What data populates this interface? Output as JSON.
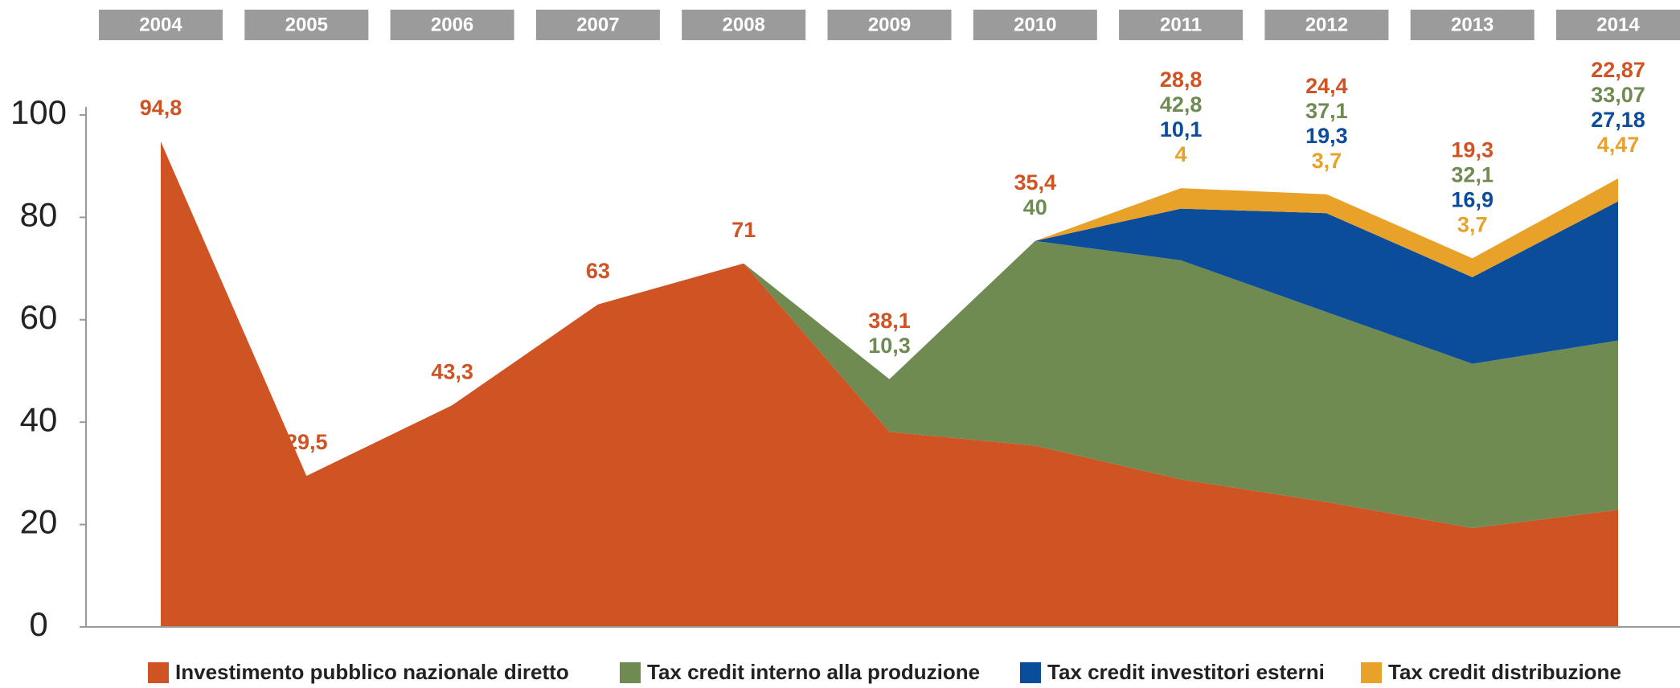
{
  "chart_data": {
    "type": "stacked_area",
    "categories": [
      "2004",
      "2005",
      "2006",
      "2007",
      "2008",
      "2009",
      "2010",
      "2011",
      "2012",
      "2013",
      "2014"
    ],
    "series": [
      {
        "name": "Investimento pubblico nazionale diretto",
        "color": "#d05323",
        "values": [
          94.8,
          29.5,
          43.3,
          63,
          71,
          38.1,
          35.4,
          28.8,
          24.4,
          19.3,
          22.87
        ]
      },
      {
        "name": "Tax credit interno alla produzione",
        "color": "#6f8b52",
        "values": [
          null,
          null,
          null,
          null,
          0,
          10.3,
          40,
          42.8,
          37.1,
          32.1,
          33.07
        ]
      },
      {
        "name": "Tax credit investitori esterni",
        "color": "#0b4d9b",
        "values": [
          null,
          null,
          null,
          null,
          null,
          null,
          0,
          10.1,
          19.3,
          16.9,
          27.18
        ]
      },
      {
        "name": "Tax credit distribuzione",
        "color": "#e8a22a",
        "values": [
          null,
          null,
          null,
          null,
          null,
          null,
          0,
          4,
          3.7,
          3.7,
          4.47
        ]
      }
    ],
    "value_labels": [
      [
        "94,8",
        "29,5",
        "43,3",
        "63",
        "71",
        "38,1",
        "35,4",
        "28,8",
        "24,4",
        "19,3",
        "22,87"
      ],
      [
        null,
        null,
        null,
        null,
        null,
        "10,3",
        "40",
        "42,8",
        "37,1",
        "32,1",
        "33,07"
      ],
      [
        null,
        null,
        null,
        null,
        null,
        null,
        null,
        "10,1",
        "19,3",
        "16,9",
        "27,18"
      ],
      [
        null,
        null,
        null,
        null,
        null,
        null,
        null,
        "4",
        "3,7",
        "3,7",
        "4,47"
      ]
    ],
    "ylim": [
      0,
      100
    ],
    "yticks": [
      0,
      20,
      40,
      60,
      80,
      100
    ],
    "grid": false
  }
}
